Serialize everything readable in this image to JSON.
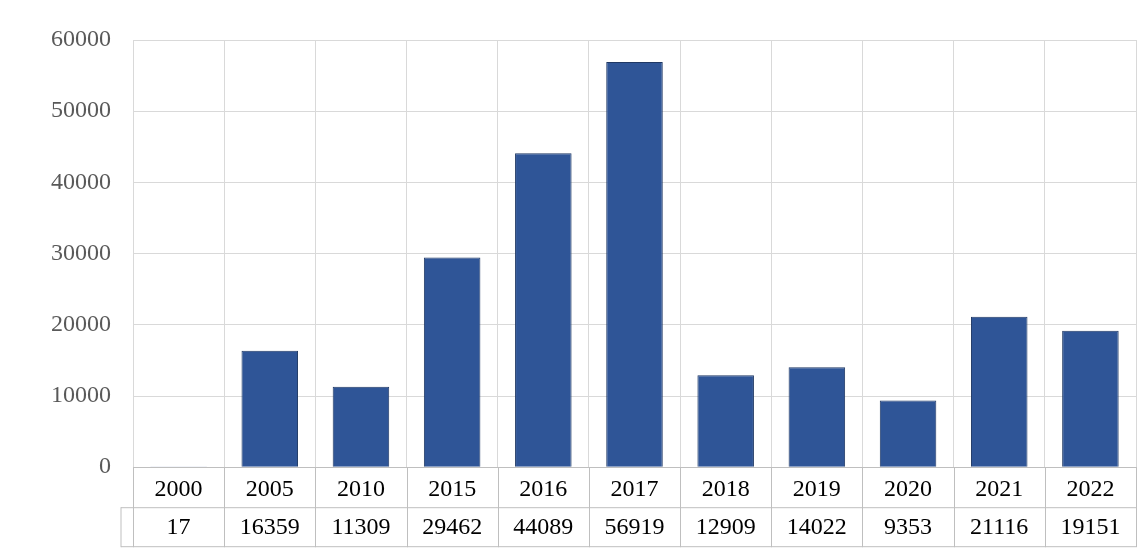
{
  "chart_data": {
    "type": "bar",
    "categories": [
      "2000",
      "2005",
      "2010",
      "2015",
      "2016",
      "2017",
      "2018",
      "2019",
      "2020",
      "2021",
      "2022"
    ],
    "values": [
      17,
      16359,
      11309,
      29462,
      44089,
      56919,
      12909,
      14022,
      9353,
      21116,
      19151
    ],
    "color": "#2f5597",
    "ylim": [
      0,
      60000
    ],
    "yticks": [
      0,
      10000,
      20000,
      30000,
      40000,
      50000,
      60000
    ],
    "grid": true,
    "data_labels": true
  }
}
